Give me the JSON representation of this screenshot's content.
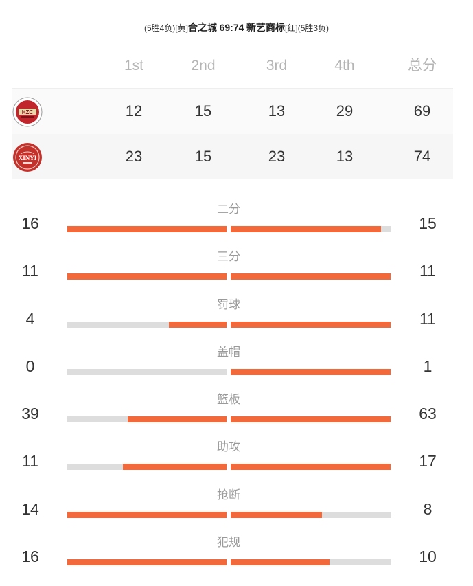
{
  "game": {
    "home_record": "(5胜4负)",
    "home_tag": "[黄]",
    "home_name": "合之城",
    "score_text": "69:74",
    "away_name": "新艺商标",
    "away_tag": "[红]",
    "away_record": "(5胜3负)"
  },
  "score_table": {
    "headers": [
      "1st",
      "2nd",
      "3rd",
      "4th",
      "总分"
    ],
    "teams": [
      {
        "logo": "hezhicheng-logo-icon",
        "logo_color": "#c0262c",
        "quarters": [
          "12",
          "15",
          "13",
          "29"
        ],
        "total": "69"
      },
      {
        "logo": "xinyi-logo-icon",
        "logo_color": "#c3312a",
        "quarters": [
          "23",
          "15",
          "23",
          "13"
        ],
        "total": "74"
      }
    ]
  },
  "stats": [
    {
      "label": "二分",
      "left": "16",
      "right": "15",
      "left_fill": 1.0,
      "right_fill": 0.94
    },
    {
      "label": "三分",
      "left": "11",
      "right": "11",
      "left_fill": 1.0,
      "right_fill": 1.0
    },
    {
      "label": "罚球",
      "left": "4",
      "right": "11",
      "left_fill": 0.36,
      "right_fill": 1.0
    },
    {
      "label": "盖帽",
      "left": "0",
      "right": "1",
      "left_fill": 0.0,
      "right_fill": 1.0
    },
    {
      "label": "篮板",
      "left": "39",
      "right": "63",
      "left_fill": 0.62,
      "right_fill": 1.0
    },
    {
      "label": "助攻",
      "left": "11",
      "right": "17",
      "left_fill": 0.65,
      "right_fill": 1.0
    },
    {
      "label": "抢断",
      "left": "14",
      "right": "8",
      "left_fill": 1.0,
      "right_fill": 0.57
    },
    {
      "label": "犯规",
      "left": "16",
      "right": "10",
      "left_fill": 1.0,
      "right_fill": 0.62
    }
  ],
  "colors": {
    "bar_fill": "#f26a3c",
    "bar_track": "#dddddd",
    "header_text": "#b5b5b5",
    "label_text": "#9a9a9a"
  }
}
